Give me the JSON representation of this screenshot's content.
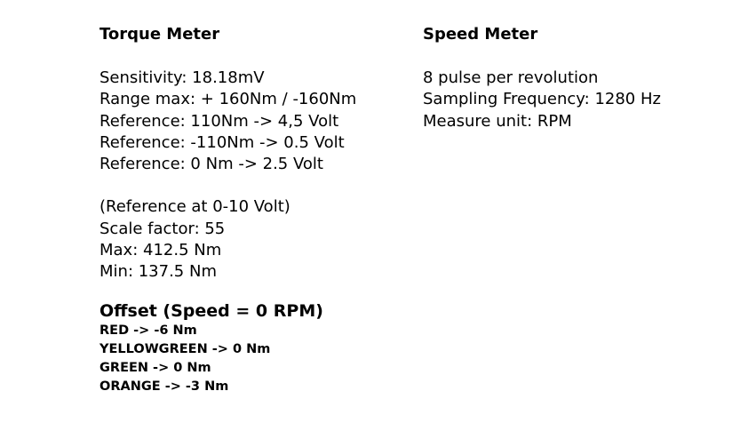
{
  "torque_meter": {
    "title": "Torque Meter",
    "specs": [
      "Sensitivity: 18.18mV",
      "Range max: + 160Nm / -160Nm",
      "Reference: 110Nm -> 4,5 Volt",
      "Reference: -110Nm -> 0.5 Volt",
      "Reference: 0 Nm -> 2.5 Volt"
    ],
    "reference_0_10": [
      "(Reference at 0-10 Volt)",
      "Scale factor: 55",
      "Max: 412.5 Nm",
      "Min: 137.5 Nm"
    ],
    "offset": {
      "title": "Offset (Speed = 0 RPM)",
      "items": [
        "RED -> -6 Nm",
        "YELLOWGREEN -> 0 Nm",
        "GREEN -> 0 Nm",
        "ORANGE -> -3 Nm"
      ]
    }
  },
  "speed_meter": {
    "title": "Speed Meter",
    "specs": [
      "8 pulse per revolution",
      "Sampling Frequency: 1280 Hz",
      "Measure unit: RPM"
    ]
  }
}
